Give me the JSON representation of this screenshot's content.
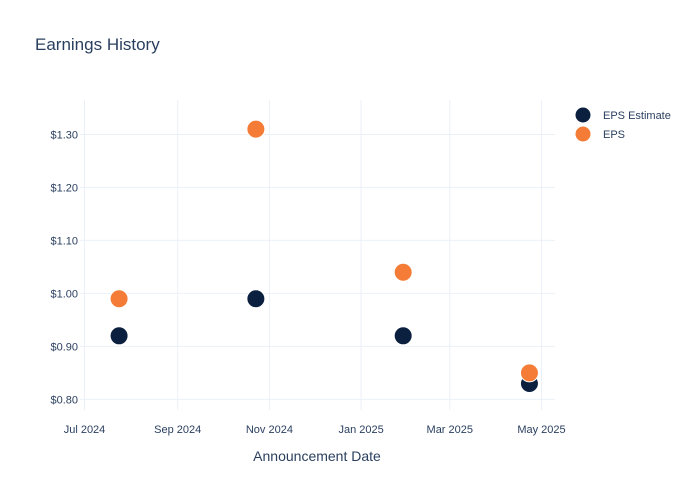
{
  "chart_data": {
    "type": "scatter",
    "title": "Earnings History",
    "xlabel": "Announcement Date",
    "ylabel": "",
    "x_ticks": [
      "2024-07-01",
      "2024-09-01",
      "2024-11-01",
      "2025-01-01",
      "2025-03-01",
      "2025-05-01"
    ],
    "x_tick_labels": [
      "Jul 2024",
      "Sep 2024",
      "Nov 2024",
      "Jan 2025",
      "Mar 2025",
      "May 2025"
    ],
    "xlim": [
      "2024-06-28",
      "2025-05-10"
    ],
    "y_ticks": [
      0.8,
      0.9,
      1.0,
      1.1,
      1.2,
      1.3
    ],
    "y_tick_labels": [
      "$0.80",
      "$0.90",
      "$1.00",
      "$1.10",
      "$1.20",
      "$1.30"
    ],
    "ylim": [
      0.78,
      1.365
    ],
    "grid": true,
    "legend_position": "top-right",
    "series": [
      {
        "name": "EPS Estimate",
        "color": "#0b1f3f",
        "points": [
          {
            "x": "2024-07-24",
            "y": 0.92
          },
          {
            "x": "2024-10-23",
            "y": 0.99
          },
          {
            "x": "2025-01-29",
            "y": 0.92
          },
          {
            "x": "2025-04-23",
            "y": 0.83
          }
        ]
      },
      {
        "name": "EPS",
        "color": "#f47c36",
        "points": [
          {
            "x": "2024-07-24",
            "y": 0.99
          },
          {
            "x": "2024-10-23",
            "y": 1.31
          },
          {
            "x": "2025-01-29",
            "y": 1.04
          },
          {
            "x": "2025-04-23",
            "y": 0.85
          }
        ]
      }
    ]
  }
}
